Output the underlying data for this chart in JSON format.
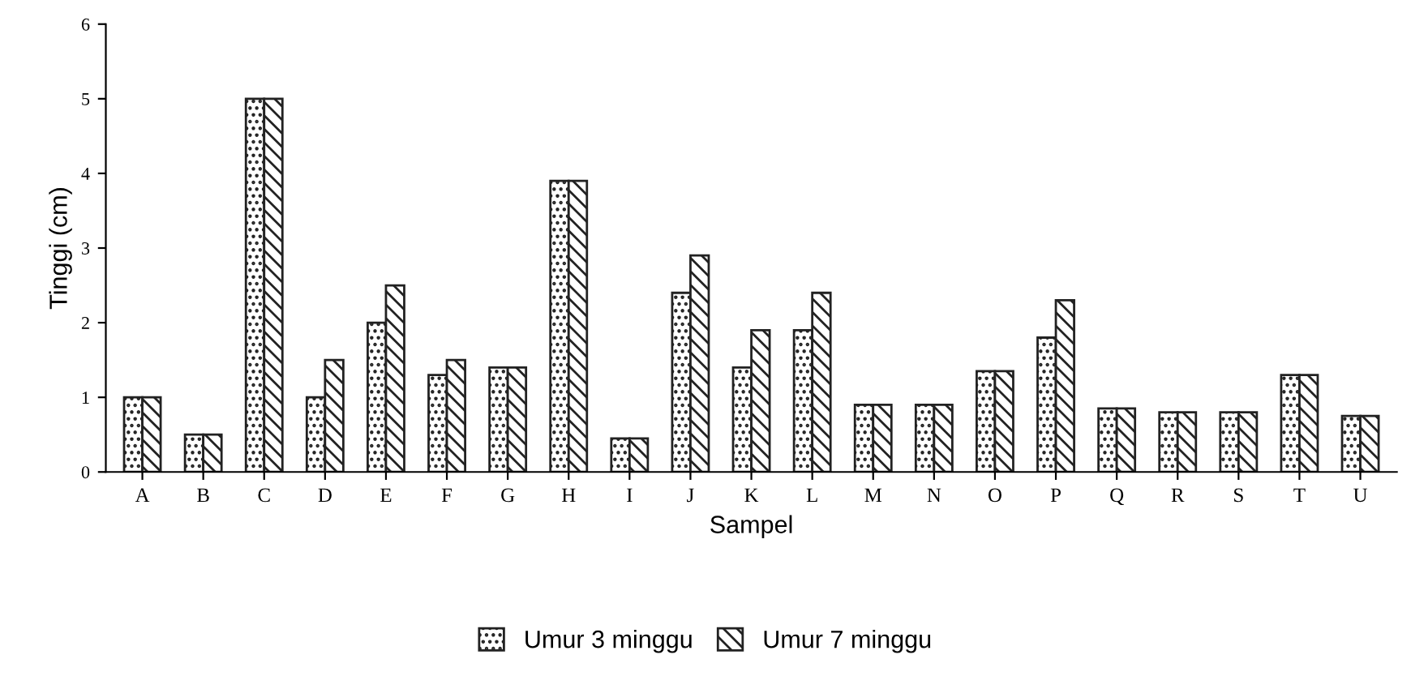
{
  "chart_data": {
    "type": "bar",
    "xlabel": "Sampel",
    "ylabel": "Tinggi (cm)",
    "categories": [
      "A",
      "B",
      "C",
      "D",
      "E",
      "F",
      "G",
      "H",
      "I",
      "J",
      "K",
      "L",
      "M",
      "N",
      "O",
      "P",
      "Q",
      "R",
      "S",
      "T",
      "U"
    ],
    "series": [
      {
        "name": "Umur 3 minggu",
        "color": "#222222",
        "values": [
          1,
          0.5,
          5,
          1,
          2,
          1.3,
          1.4,
          3.9,
          0.45,
          2.4,
          1.4,
          1.9,
          0.9,
          0.9,
          1.35,
          1.8,
          0.85,
          0.8,
          0.8,
          1.3,
          0.75
        ]
      },
      {
        "name": "Umur 7 minggu",
        "color": "#222222",
        "values": [
          1,
          0.5,
          5,
          1.5,
          2.5,
          1.5,
          1.4,
          3.9,
          0.45,
          2.9,
          1.9,
          2.4,
          0.9,
          0.9,
          1.35,
          2.3,
          0.85,
          0.8,
          0.8,
          1.3,
          0.75
        ]
      }
    ],
    "ylim": [
      0,
      6
    ],
    "yticks": [
      0,
      1,
      2,
      3,
      4,
      5,
      6
    ],
    "grid": false,
    "legend": "bottom"
  }
}
